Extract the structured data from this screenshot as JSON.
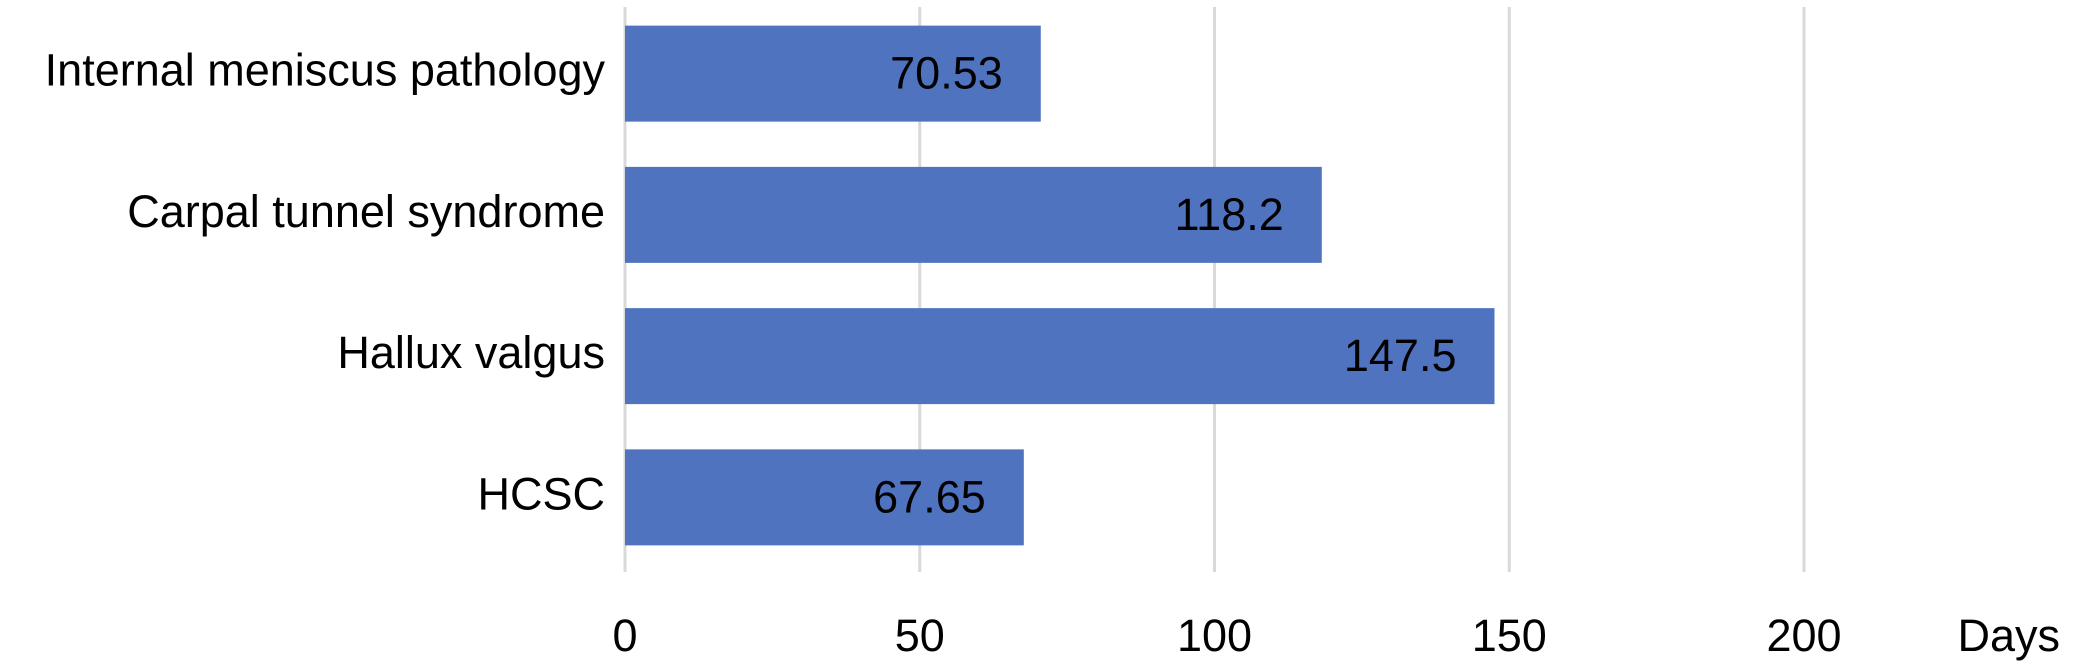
{
  "chart_data": {
    "type": "hbar",
    "categories": [
      "Internal meniscus pathology",
      "Carpal tunnel syndrome",
      "Hallux valgus",
      "HCSC"
    ],
    "values": [
      70.53,
      118.2,
      147.5,
      67.65
    ],
    "color": "#4f73be",
    "x_label": "Days",
    "xlim": [
      0,
      200
    ],
    "xticks": [
      0,
      50,
      100,
      150,
      200
    ],
    "grid": true
  }
}
